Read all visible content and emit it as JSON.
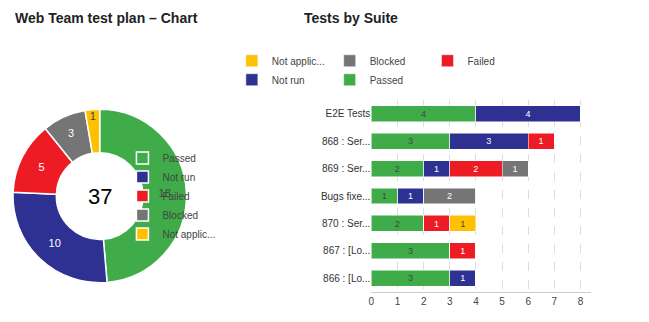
{
  "chart_data": [
    {
      "type": "pie",
      "title": "Web Team test plan – Chart",
      "categories": [
        "Passed",
        "Not run",
        "Failed",
        "Blocked",
        "Not applic..."
      ],
      "values": [
        18,
        10,
        5,
        3,
        1
      ],
      "colors": [
        "#3fac49",
        "#2e3192",
        "#ed1c24",
        "#757575",
        "#ffc000"
      ],
      "annotations": [
        "37"
      ],
      "data_labels": true,
      "legend": "right"
    },
    {
      "type": "bar",
      "title": "Tests by Suite",
      "orientation": "horizontal",
      "stacked": true,
      "categories": [
        "E2E Tests",
        "868 : Ser...",
        "869 : Ser...",
        "Bugs fixe...",
        "870 : Ser...",
        "867 : [Lo...",
        "866 : [Lo..."
      ],
      "series": [
        {
          "name": "Passed",
          "color": "#3fac49",
          "values": [
            4,
            3,
            2,
            1,
            2,
            3,
            3
          ]
        },
        {
          "name": "Not run",
          "color": "#2e3192",
          "values": [
            4,
            3,
            1,
            1,
            0,
            0,
            1
          ]
        },
        {
          "name": "Failed",
          "color": "#ed1c24",
          "values": [
            0,
            1,
            2,
            0,
            1,
            1,
            0
          ]
        },
        {
          "name": "Blocked",
          "color": "#757575",
          "values": [
            0,
            0,
            1,
            2,
            0,
            0,
            0
          ]
        },
        {
          "name": "Not applic...",
          "color": "#ffc000",
          "values": [
            0,
            0,
            0,
            0,
            1,
            0,
            0
          ]
        }
      ],
      "xlim": [
        0,
        8.4
      ],
      "xticks": [
        0,
        1,
        2,
        3,
        4,
        5,
        6,
        7,
        8
      ],
      "grid": true,
      "data_labels": true,
      "legend": "top"
    }
  ]
}
